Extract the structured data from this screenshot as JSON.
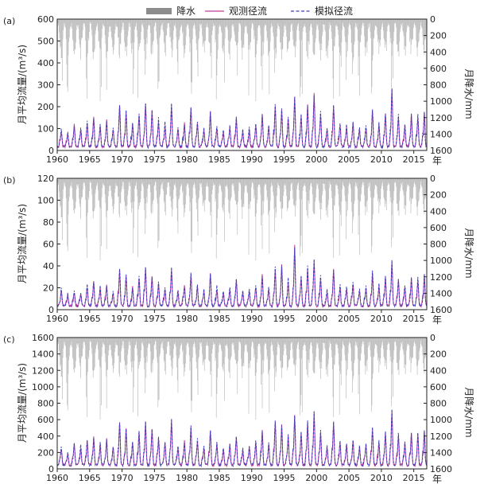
{
  "legend": {
    "precip_label": "降水",
    "observed_label": "观测径流",
    "simulated_label": "模拟径流"
  },
  "colors": {
    "precip": "#bdbdbd",
    "observed": "#c23a96",
    "simulated": "#3b3fbf",
    "legend_precip": "#8c8c8c",
    "axis": "#222222"
  },
  "chart_data": [
    {
      "panel": "(a)",
      "type": "line",
      "xlabel": "年",
      "ylabel": "月平均流量/(m³/s)",
      "ylabel_right": "月降水/mm",
      "xlim": [
        1960,
        2017
      ],
      "xticks": [
        "1960",
        "1965",
        "1970",
        "1975",
        "1980",
        "1985",
        "1990",
        "1995",
        "2000",
        "2005",
        "2010",
        "2015"
      ],
      "ylim": [
        0,
        600
      ],
      "yticks": [
        "0",
        "100",
        "200",
        "300",
        "400",
        "500",
        "600"
      ],
      "y2lim": [
        0,
        1600
      ],
      "y2ticks": [
        "0",
        "200",
        "400",
        "600",
        "800",
        "1000",
        "1200",
        "1400",
        "1600"
      ],
      "y2_inverted": true,
      "annual_peaks": [
        {
          "year": 1960,
          "observed": 80,
          "simulated": 95
        },
        {
          "year": 1961,
          "observed": 70,
          "simulated": 75
        },
        {
          "year": 1962,
          "observed": 110,
          "simulated": 105
        },
        {
          "year": 1963,
          "observed": 90,
          "simulated": 100
        },
        {
          "year": 1964,
          "observed": 120,
          "simulated": 125
        },
        {
          "year": 1965,
          "observed": 150,
          "simulated": 140
        },
        {
          "year": 1966,
          "observed": 100,
          "simulated": 110
        },
        {
          "year": 1967,
          "observed": 130,
          "simulated": 125
        },
        {
          "year": 1968,
          "observed": 90,
          "simulated": 95
        },
        {
          "year": 1969,
          "observed": 200,
          "simulated": 205
        },
        {
          "year": 1970,
          "observed": 170,
          "simulated": 175
        },
        {
          "year": 1971,
          "observed": 120,
          "simulated": 115
        },
        {
          "year": 1972,
          "observed": 160,
          "simulated": 165
        },
        {
          "year": 1973,
          "observed": 205,
          "simulated": 210
        },
        {
          "year": 1974,
          "observed": 180,
          "simulated": 175
        },
        {
          "year": 1975,
          "observed": 130,
          "simulated": 140
        },
        {
          "year": 1976,
          "observed": 110,
          "simulated": 120
        },
        {
          "year": 1977,
          "observed": 200,
          "simulated": 205
        },
        {
          "year": 1978,
          "observed": 90,
          "simulated": 100
        },
        {
          "year": 1979,
          "observed": 120,
          "simulated": 110
        },
        {
          "year": 1980,
          "observed": 190,
          "simulated": 195
        },
        {
          "year": 1981,
          "observed": 120,
          "simulated": 130
        },
        {
          "year": 1982,
          "observed": 90,
          "simulated": 100
        },
        {
          "year": 1983,
          "observed": 170,
          "simulated": 165
        },
        {
          "year": 1984,
          "observed": 100,
          "simulated": 110
        },
        {
          "year": 1985,
          "observed": 80,
          "simulated": 90
        },
        {
          "year": 1986,
          "observed": 100,
          "simulated": 105
        },
        {
          "year": 1987,
          "observed": 140,
          "simulated": 145
        },
        {
          "year": 1988,
          "observed": 80,
          "simulated": 90
        },
        {
          "year": 1989,
          "observed": 90,
          "simulated": 100
        },
        {
          "year": 1990,
          "observed": 110,
          "simulated": 120
        },
        {
          "year": 1991,
          "observed": 160,
          "simulated": 155
        },
        {
          "year": 1992,
          "observed": 100,
          "simulated": 105
        },
        {
          "year": 1993,
          "observed": 200,
          "simulated": 205
        },
        {
          "year": 1994,
          "observed": 180,
          "simulated": 185
        },
        {
          "year": 1995,
          "observed": 140,
          "simulated": 150
        },
        {
          "year": 1996,
          "observed": 240,
          "simulated": 235
        },
        {
          "year": 1997,
          "observed": 150,
          "simulated": 160
        },
        {
          "year": 1998,
          "observed": 200,
          "simulated": 195
        },
        {
          "year": 1999,
          "observed": 255,
          "simulated": 250
        },
        {
          "year": 2000,
          "observed": 160,
          "simulated": 170
        },
        {
          "year": 2001,
          "observed": 90,
          "simulated": 100
        },
        {
          "year": 2002,
          "observed": 200,
          "simulated": 205
        },
        {
          "year": 2003,
          "observed": 110,
          "simulated": 120
        },
        {
          "year": 2004,
          "observed": 100,
          "simulated": 110
        },
        {
          "year": 2005,
          "observed": 120,
          "simulated": 125
        },
        {
          "year": 2006,
          "observed": 90,
          "simulated": 100
        },
        {
          "year": 2007,
          "observed": 100,
          "simulated": 110
        },
        {
          "year": 2008,
          "observed": 180,
          "simulated": 185
        },
        {
          "year": 2009,
          "observed": 110,
          "simulated": 120
        },
        {
          "year": 2010,
          "observed": 160,
          "simulated": 165
        },
        {
          "year": 2011,
          "observed": 275,
          "simulated": 280
        },
        {
          "year": 2012,
          "observed": 150,
          "simulated": 160
        },
        {
          "year": 2013,
          "observed": 110,
          "simulated": 115
        },
        {
          "year": 2014,
          "observed": 160,
          "simulated": 155
        },
        {
          "year": 2015,
          "observed": 150,
          "simulated": 155
        },
        {
          "year": 2016,
          "observed": 170,
          "simulated": 165
        }
      ]
    },
    {
      "panel": "(b)",
      "type": "line",
      "xlabel": "年",
      "ylabel": "月平均流量/(m³/s)",
      "ylabel_right": "月降水/mm",
      "xlim": [
        1960,
        2017
      ],
      "xticks": [
        "1960",
        "1965",
        "1970",
        "1975",
        "1980",
        "1985",
        "1990",
        "1995",
        "2000",
        "2005",
        "2010",
        "2015"
      ],
      "ylim": [
        0,
        120
      ],
      "yticks": [
        "0",
        "20",
        "40",
        "60",
        "80",
        "100",
        "120"
      ],
      "y2lim": [
        0,
        1600
      ],
      "y2ticks": [
        "0",
        "200",
        "400",
        "600",
        "800",
        "1000",
        "1200",
        "1400",
        "1600"
      ],
      "y2_inverted": true,
      "annual_peaks": [
        {
          "year": 1960,
          "observed": 16,
          "simulated": 18
        },
        {
          "year": 1961,
          "observed": 12,
          "simulated": 13
        },
        {
          "year": 1962,
          "observed": 15,
          "simulated": 16
        },
        {
          "year": 1963,
          "observed": 14,
          "simulated": 15
        },
        {
          "year": 1964,
          "observed": 20,
          "simulated": 22
        },
        {
          "year": 1965,
          "observed": 24,
          "simulated": 25
        },
        {
          "year": 1966,
          "observed": 18,
          "simulated": 20
        },
        {
          "year": 1967,
          "observed": 22,
          "simulated": 21
        },
        {
          "year": 1968,
          "observed": 14,
          "simulated": 16
        },
        {
          "year": 1969,
          "observed": 35,
          "simulated": 37
        },
        {
          "year": 1970,
          "observed": 30,
          "simulated": 32
        },
        {
          "year": 1971,
          "observed": 20,
          "simulated": 19
        },
        {
          "year": 1972,
          "observed": 28,
          "simulated": 30
        },
        {
          "year": 1973,
          "observed": 37,
          "simulated": 38
        },
        {
          "year": 1974,
          "observed": 30,
          "simulated": 28
        },
        {
          "year": 1975,
          "observed": 22,
          "simulated": 24
        },
        {
          "year": 1976,
          "observed": 18,
          "simulated": 20
        },
        {
          "year": 1977,
          "observed": 36,
          "simulated": 37
        },
        {
          "year": 1978,
          "observed": 15,
          "simulated": 17
        },
        {
          "year": 1979,
          "observed": 22,
          "simulated": 20
        },
        {
          "year": 1980,
          "observed": 30,
          "simulated": 32
        },
        {
          "year": 1981,
          "observed": 20,
          "simulated": 22
        },
        {
          "year": 1982,
          "observed": 16,
          "simulated": 17
        },
        {
          "year": 1983,
          "observed": 32,
          "simulated": 31
        },
        {
          "year": 1984,
          "observed": 18,
          "simulated": 20
        },
        {
          "year": 1985,
          "observed": 14,
          "simulated": 16
        },
        {
          "year": 1986,
          "observed": 18,
          "simulated": 19
        },
        {
          "year": 1987,
          "observed": 26,
          "simulated": 27
        },
        {
          "year": 1988,
          "observed": 14,
          "simulated": 16
        },
        {
          "year": 1989,
          "observed": 16,
          "simulated": 18
        },
        {
          "year": 1990,
          "observed": 20,
          "simulated": 22
        },
        {
          "year": 1991,
          "observed": 32,
          "simulated": 30
        },
        {
          "year": 1992,
          "observed": 18,
          "simulated": 20
        },
        {
          "year": 1993,
          "observed": 36,
          "simulated": 38
        },
        {
          "year": 1994,
          "observed": 40,
          "simulated": 38
        },
        {
          "year": 1995,
          "observed": 25,
          "simulated": 27
        },
        {
          "year": 1996,
          "observed": 58,
          "simulated": 55
        },
        {
          "year": 1997,
          "observed": 28,
          "simulated": 30
        },
        {
          "year": 1998,
          "observed": 36,
          "simulated": 38
        },
        {
          "year": 1999,
          "observed": 44,
          "simulated": 45
        },
        {
          "year": 2000,
          "observed": 28,
          "simulated": 30
        },
        {
          "year": 2001,
          "observed": 16,
          "simulated": 18
        },
        {
          "year": 2002,
          "observed": 35,
          "simulated": 36
        },
        {
          "year": 2003,
          "observed": 20,
          "simulated": 22
        },
        {
          "year": 2004,
          "observed": 18,
          "simulated": 20
        },
        {
          "year": 2005,
          "observed": 22,
          "simulated": 24
        },
        {
          "year": 2006,
          "observed": 16,
          "simulated": 18
        },
        {
          "year": 2007,
          "observed": 18,
          "simulated": 20
        },
        {
          "year": 2008,
          "observed": 32,
          "simulated": 34
        },
        {
          "year": 2009,
          "observed": 20,
          "simulated": 22
        },
        {
          "year": 2010,
          "observed": 28,
          "simulated": 30
        },
        {
          "year": 2011,
          "observed": 42,
          "simulated": 43
        },
        {
          "year": 2012,
          "observed": 26,
          "simulated": 28
        },
        {
          "year": 2013,
          "observed": 20,
          "simulated": 22
        },
        {
          "year": 2014,
          "observed": 28,
          "simulated": 27
        },
        {
          "year": 2015,
          "observed": 26,
          "simulated": 28
        },
        {
          "year": 2016,
          "observed": 30,
          "simulated": 31
        }
      ]
    },
    {
      "panel": "(c)",
      "type": "line",
      "xlabel": "年",
      "ylabel": "月平均流量/(m³/s)",
      "ylabel_right": "月降水/mm",
      "xlim": [
        1960,
        2017
      ],
      "xticks": [
        "1960",
        "1965",
        "1970",
        "1975",
        "1980",
        "1985",
        "1990",
        "1995",
        "2000",
        "2005",
        "2010",
        "2015"
      ],
      "ylim": [
        0,
        1600
      ],
      "yticks": [
        "0",
        "200",
        "400",
        "600",
        "800",
        "1000",
        "1200",
        "1400",
        "1600"
      ],
      "y2lim": [
        0,
        1600
      ],
      "y2ticks": [
        "0",
        "200",
        "400",
        "600",
        "800",
        "1000",
        "1200",
        "1400",
        "1600"
      ],
      "y2_inverted": true,
      "annual_peaks": [
        {
          "year": 1960,
          "observed": 230,
          "simulated": 260
        },
        {
          "year": 1961,
          "observed": 180,
          "simulated": 200
        },
        {
          "year": 1962,
          "observed": 300,
          "simulated": 290
        },
        {
          "year": 1963,
          "observed": 250,
          "simulated": 270
        },
        {
          "year": 1964,
          "observed": 320,
          "simulated": 340
        },
        {
          "year": 1965,
          "observed": 380,
          "simulated": 360
        },
        {
          "year": 1966,
          "observed": 280,
          "simulated": 300
        },
        {
          "year": 1967,
          "observed": 350,
          "simulated": 340
        },
        {
          "year": 1968,
          "observed": 240,
          "simulated": 260
        },
        {
          "year": 1969,
          "observed": 550,
          "simulated": 560
        },
        {
          "year": 1970,
          "observed": 470,
          "simulated": 480
        },
        {
          "year": 1971,
          "observed": 320,
          "simulated": 310
        },
        {
          "year": 1972,
          "observed": 440,
          "simulated": 450
        },
        {
          "year": 1973,
          "observed": 560,
          "simulated": 570
        },
        {
          "year": 1974,
          "observed": 480,
          "simulated": 470
        },
        {
          "year": 1975,
          "observed": 350,
          "simulated": 380
        },
        {
          "year": 1976,
          "observed": 300,
          "simulated": 320
        },
        {
          "year": 1977,
          "observed": 580,
          "simulated": 590
        },
        {
          "year": 1978,
          "observed": 250,
          "simulated": 270
        },
        {
          "year": 1979,
          "observed": 330,
          "simulated": 300
        },
        {
          "year": 1980,
          "observed": 500,
          "simulated": 520
        },
        {
          "year": 1981,
          "observed": 320,
          "simulated": 350
        },
        {
          "year": 1982,
          "observed": 250,
          "simulated": 270
        },
        {
          "year": 1983,
          "observed": 460,
          "simulated": 450
        },
        {
          "year": 1984,
          "observed": 280,
          "simulated": 300
        },
        {
          "year": 1985,
          "observed": 220,
          "simulated": 240
        },
        {
          "year": 1986,
          "observed": 280,
          "simulated": 290
        },
        {
          "year": 1987,
          "observed": 380,
          "simulated": 390
        },
        {
          "year": 1988,
          "observed": 220,
          "simulated": 240
        },
        {
          "year": 1989,
          "observed": 250,
          "simulated": 270
        },
        {
          "year": 1990,
          "observed": 300,
          "simulated": 320
        },
        {
          "year": 1991,
          "observed": 450,
          "simulated": 430
        },
        {
          "year": 1992,
          "observed": 280,
          "simulated": 300
        },
        {
          "year": 1993,
          "observed": 560,
          "simulated": 570
        },
        {
          "year": 1994,
          "observed": 520,
          "simulated": 500
        },
        {
          "year": 1995,
          "observed": 380,
          "simulated": 400
        },
        {
          "year": 1996,
          "observed": 640,
          "simulated": 620
        },
        {
          "year": 1997,
          "observed": 420,
          "simulated": 440
        },
        {
          "year": 1998,
          "observed": 540,
          "simulated": 560
        },
        {
          "year": 1999,
          "observed": 680,
          "simulated": 670
        },
        {
          "year": 2000,
          "observed": 440,
          "simulated": 460
        },
        {
          "year": 2001,
          "observed": 250,
          "simulated": 270
        },
        {
          "year": 2002,
          "observed": 540,
          "simulated": 550
        },
        {
          "year": 2003,
          "observed": 300,
          "simulated": 320
        },
        {
          "year": 2004,
          "observed": 280,
          "simulated": 300
        },
        {
          "year": 2005,
          "observed": 330,
          "simulated": 340
        },
        {
          "year": 2006,
          "observed": 250,
          "simulated": 270
        },
        {
          "year": 2007,
          "observed": 280,
          "simulated": 300
        },
        {
          "year": 2008,
          "observed": 480,
          "simulated": 500
        },
        {
          "year": 2009,
          "observed": 300,
          "simulated": 320
        },
        {
          "year": 2010,
          "observed": 430,
          "simulated": 440
        },
        {
          "year": 2011,
          "observed": 690,
          "simulated": 700
        },
        {
          "year": 2012,
          "observed": 400,
          "simulated": 420
        },
        {
          "year": 2013,
          "observed": 300,
          "simulated": 310
        },
        {
          "year": 2014,
          "observed": 420,
          "simulated": 410
        },
        {
          "year": 2015,
          "observed": 400,
          "simulated": 420
        },
        {
          "year": 2016,
          "observed": 440,
          "simulated": 450
        }
      ]
    }
  ]
}
